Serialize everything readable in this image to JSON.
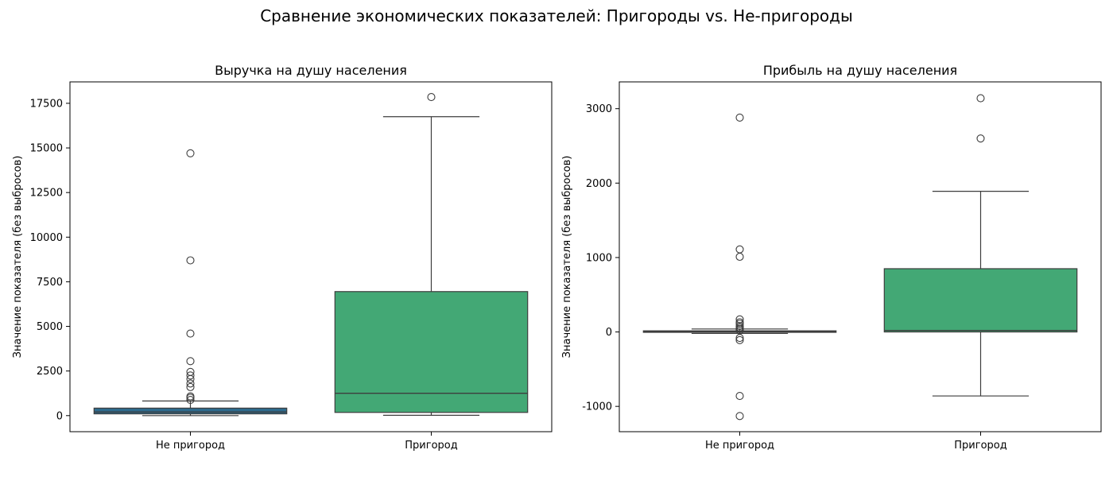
{
  "figure": {
    "title": "Сравнение экономических показателей: Пригороды vs. Не-пригороды"
  },
  "chart_data": [
    {
      "type": "box",
      "title": "Выручка на душу населения",
      "xlabel": "",
      "ylabel": "Значение показателя (без выбросов)",
      "categories": [
        "Не пригород",
        "Пригород"
      ],
      "ylim": [
        -900,
        18700
      ],
      "yticks": [
        0,
        2500,
        5000,
        7500,
        10000,
        12500,
        15000,
        17500
      ],
      "ytick_labels": [
        "0",
        "2500",
        "5000",
        "7500",
        "10000",
        "12500",
        "15000",
        "17500"
      ],
      "grid": false,
      "boxes": [
        {
          "category": "Не пригород",
          "color": "#2e6a8c",
          "whisker_low": 0,
          "q1": 100,
          "median": 200,
          "q3": 420,
          "whisker_high": 820,
          "outliers": [
            880,
            1000,
            1080,
            1600,
            1800,
            2050,
            2250,
            2450,
            3050,
            4600,
            8700,
            14700
          ]
        },
        {
          "category": "Пригород",
          "color": "#43a875",
          "whisker_low": 20,
          "q1": 180,
          "median": 1250,
          "q3": 6950,
          "whisker_high": 16750,
          "outliers": [
            17850
          ]
        }
      ]
    },
    {
      "type": "box",
      "title": "Прибыль на душу населения",
      "xlabel": "",
      "ylabel": "Значение показателя (без выбросов)",
      "categories": [
        "Не пригород",
        "Пригород"
      ],
      "ylim": [
        -1340,
        3360
      ],
      "yticks": [
        -1000,
        0,
        1000,
        2000,
        3000
      ],
      "ytick_labels": [
        "-1000",
        "0",
        "1000",
        "2000",
        "3000"
      ],
      "grid": false,
      "boxes": [
        {
          "category": "Не пригород",
          "color": "#2e6a8c",
          "whisker_low": -20,
          "q1": -5,
          "median": 5,
          "q3": 15,
          "whisker_high": 40,
          "outliers": [
            -1130,
            -860,
            -110,
            -80,
            20,
            40,
            60,
            80,
            110,
            130,
            170,
            1010,
            1110,
            2880
          ]
        },
        {
          "category": "Пригород",
          "color": "#43a875",
          "whisker_low": -860,
          "q1": 0,
          "median": 20,
          "q3": 850,
          "whisker_high": 1890,
          "outliers": [
            2600,
            3140
          ]
        }
      ]
    }
  ]
}
